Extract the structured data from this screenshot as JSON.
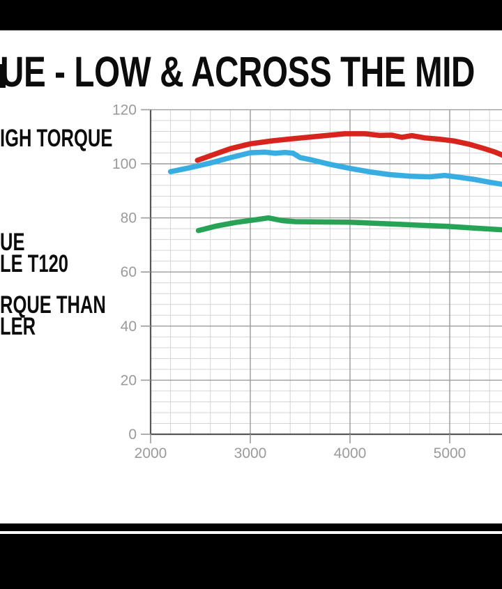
{
  "page": {
    "background": "#ffffff",
    "top_bar_color": "#000000",
    "bottom_bar_color": "#000000"
  },
  "chart_data": {
    "type": "line",
    "title": "UE - LOW & ACROSS THE MID",
    "xlabel": "",
    "ylabel": "",
    "x_ticks": [
      2000,
      3000,
      4000,
      5000
    ],
    "y_ticks": [
      0,
      20,
      40,
      60,
      80,
      100,
      120
    ],
    "xlim": [
      2000,
      5530
    ],
    "ylim": [
      0,
      120
    ],
    "x_minor_step": 200,
    "y_minor_step": 4,
    "grid": "on",
    "annotations": [
      {
        "lines": [
          "IGH TORQUE"
        ]
      },
      {
        "lines": [
          "UE",
          "LE T120"
        ]
      },
      {
        "lines": [
          "RQUE THAN",
          "LER"
        ]
      }
    ],
    "palette": {
      "grid_minor": "#d4d4d4",
      "grid_major": "#9b9b9b",
      "axis": "#565656",
      "tick_label": "#9a9a9a",
      "title_text": "#0c0c0c"
    },
    "series": [
      {
        "name": "blue-line",
        "color": "#38ade2",
        "points": [
          [
            2200,
            97.1
          ],
          [
            2400,
            98.6
          ],
          [
            2600,
            100.3
          ],
          [
            2800,
            102.3
          ],
          [
            3000,
            104.1
          ],
          [
            3150,
            104.3
          ],
          [
            3250,
            103.9
          ],
          [
            3350,
            104.2
          ],
          [
            3430,
            103.9
          ],
          [
            3500,
            102.3
          ],
          [
            3620,
            101.4
          ],
          [
            3800,
            99.8
          ],
          [
            4000,
            98.3
          ],
          [
            4200,
            97.0
          ],
          [
            4400,
            96.0
          ],
          [
            4600,
            95.4
          ],
          [
            4800,
            95.2
          ],
          [
            4950,
            95.7
          ],
          [
            5100,
            95.0
          ],
          [
            5250,
            94.2
          ],
          [
            5400,
            93.2
          ],
          [
            5530,
            92.4
          ]
        ]
      },
      {
        "name": "green-line",
        "color": "#27a356",
        "points": [
          [
            2480,
            75.3
          ],
          [
            2650,
            76.9
          ],
          [
            2850,
            78.3
          ],
          [
            3050,
            79.3
          ],
          [
            3180,
            80.0
          ],
          [
            3320,
            79.0
          ],
          [
            3450,
            78.6
          ],
          [
            3700,
            78.5
          ],
          [
            4000,
            78.4
          ],
          [
            4200,
            78.1
          ],
          [
            4450,
            77.7
          ],
          [
            4700,
            77.3
          ],
          [
            4965,
            76.9
          ],
          [
            5250,
            76.2
          ],
          [
            5530,
            75.6
          ]
        ]
      },
      {
        "name": "red-line",
        "color": "#d7251d",
        "points": [
          [
            2470,
            101.3
          ],
          [
            2600,
            103.0
          ],
          [
            2800,
            105.6
          ],
          [
            3000,
            107.4
          ],
          [
            3200,
            108.4
          ],
          [
            3400,
            109.2
          ],
          [
            3600,
            109.9
          ],
          [
            3800,
            110.6
          ],
          [
            3950,
            111.1
          ],
          [
            4150,
            111.1
          ],
          [
            4300,
            110.5
          ],
          [
            4420,
            110.6
          ],
          [
            4520,
            109.8
          ],
          [
            4620,
            110.4
          ],
          [
            4750,
            109.6
          ],
          [
            4900,
            109.1
          ],
          [
            5050,
            108.4
          ],
          [
            5200,
            107.2
          ],
          [
            5350,
            105.6
          ],
          [
            5450,
            104.4
          ],
          [
            5530,
            103.2
          ]
        ]
      }
    ]
  }
}
